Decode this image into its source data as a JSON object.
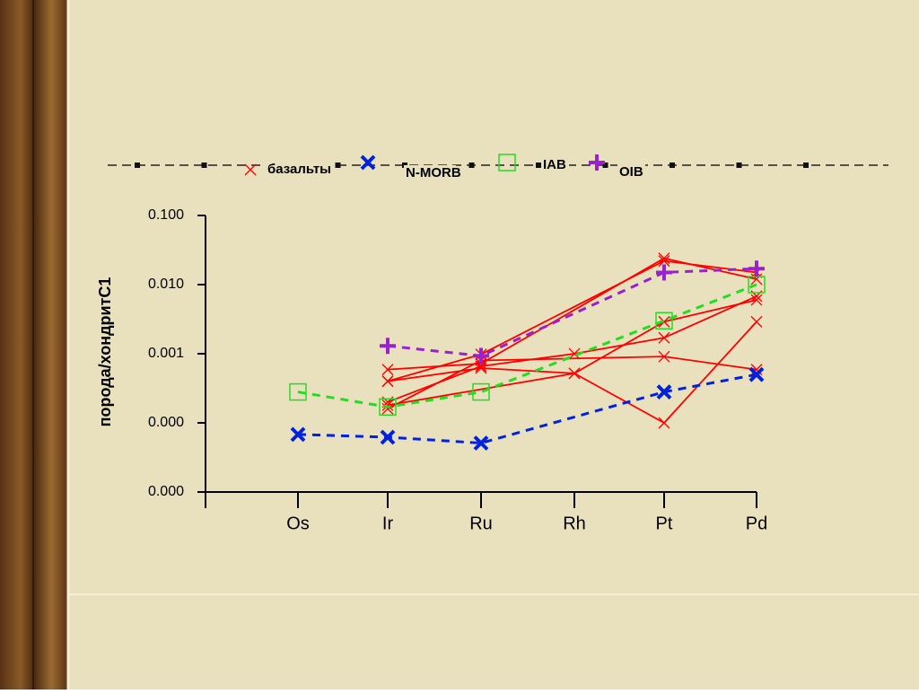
{
  "chart_data": {
    "type": "line",
    "categories": [
      "Os",
      "Ir",
      "Ru",
      "Rh",
      "Pt",
      "Pd"
    ],
    "ylabel": "порода/хондритС1",
    "log_y": true,
    "ylim": [
      1e-05,
      0.1
    ],
    "yticks": [
      {
        "value": 0.1,
        "label": "0.100"
      },
      {
        "value": 0.01,
        "label": "0.010"
      },
      {
        "value": 0.001,
        "label": "0.001"
      },
      {
        "value": 0.0001,
        "label": "0.000"
      },
      {
        "value": 1e-05,
        "label": "0.000"
      }
    ],
    "series": [
      {
        "name": "базальты",
        "color": "#ff0000",
        "marker": "x",
        "dash": false,
        "x": [
          "Ir",
          "Ru",
          "Pt",
          "Pd"
        ],
        "values": [
          0.00059,
          0.00072,
          0.024,
          0.012
        ]
      },
      {
        "color": "#ff0000",
        "marker": "x",
        "dash": false,
        "x": [
          "Ir",
          "Ru",
          "Pt",
          "Pd"
        ],
        "values": [
          0.0004,
          0.00098,
          0.022,
          0.015
        ]
      },
      {
        "color": "#ff0000",
        "marker": "x",
        "dash": false,
        "x": [
          "Ir",
          "Ru",
          "Rh",
          "Pt",
          "Pd"
        ],
        "values": [
          0.0004,
          0.00062,
          0.00052,
          0.0001,
          0.0029
        ]
      },
      {
        "color": "#ff0000",
        "marker": "x",
        "dash": false,
        "x": [
          "Ir",
          "Ru",
          "Rh",
          "Pt",
          "Pd"
        ],
        "values": [
          0.0002,
          0.00066,
          0.001,
          0.0017,
          0.0068
        ]
      },
      {
        "color": "#ff0000",
        "marker": "x",
        "dash": false,
        "x": [
          "Ir",
          "Ru",
          "Pt",
          "Pd"
        ],
        "values": [
          0.00016,
          0.0008,
          0.00091,
          0.00059
        ]
      },
      {
        "color": "#ff0000",
        "marker": "x",
        "dash": false,
        "x": [
          "Ir",
          "Rh",
          "Pt",
          "Pd"
        ],
        "values": [
          0.00018,
          0.00052,
          0.0029,
          0.006
        ]
      },
      {
        "name": "N-MORB",
        "color": "#0022dd",
        "marker": "X",
        "dash": true,
        "x": [
          "Os",
          "Ir",
          "Ru",
          "Pt",
          "Pd"
        ],
        "values": [
          6.8e-05,
          6.2e-05,
          5.1e-05,
          0.00028,
          0.0005
        ]
      },
      {
        "name": "IAB",
        "color": "#22dd22",
        "marker": "square",
        "dash": true,
        "x": [
          "Os",
          "Ir",
          "Ru",
          "Pt",
          "Pd"
        ],
        "values": [
          0.00028,
          0.00017,
          0.00028,
          0.003,
          0.01
        ]
      },
      {
        "name": "OIB",
        "color": "#9922cc",
        "marker": "plus",
        "dash": true,
        "x": [
          "Ir",
          "Ru",
          "Pt",
          "Pd"
        ],
        "values": [
          0.0013,
          0.00093,
          0.015,
          0.017
        ]
      }
    ]
  }
}
